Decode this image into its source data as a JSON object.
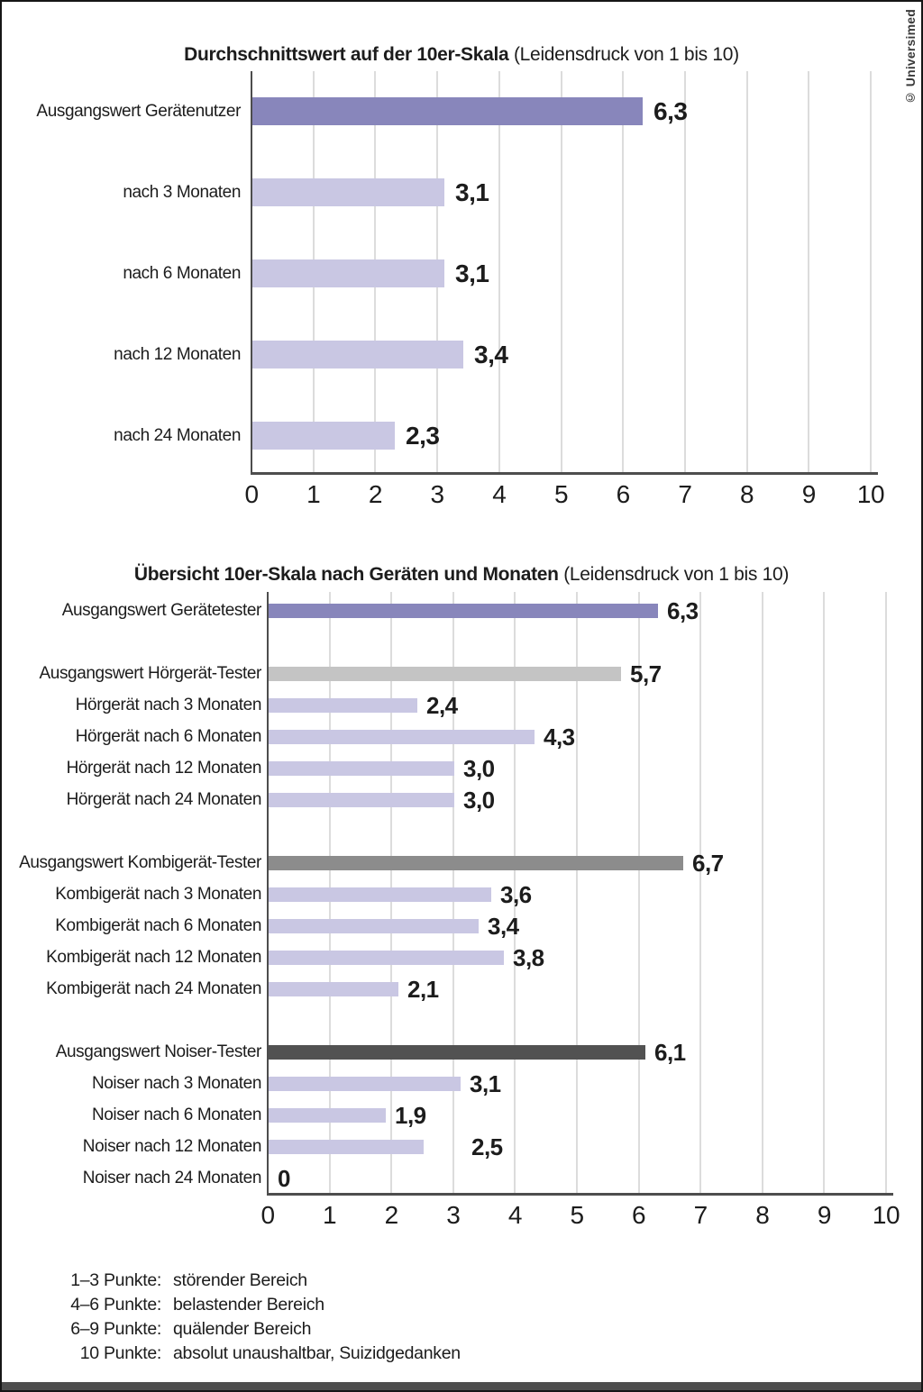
{
  "page": {
    "credit": "© Universimed"
  },
  "palette": {
    "purple_dark": "#8886bb",
    "purple_light": "#c9c7e3",
    "gray_light": "#c4c4c4",
    "gray_mid": "#8c8c8c",
    "gray_dark": "#525252",
    "axis": "#4d4d4d",
    "grid": "#dcdcdc",
    "text": "#1c1c1c"
  },
  "chart_data": [
    {
      "type": "bar",
      "orientation": "horizontal",
      "title_bold": "Durchschnittswert auf der 10er-Skala",
      "title_note": " (Leidensdruck von 1 bis 10)",
      "xlim": [
        0,
        10
      ],
      "ticks": [
        "0",
        "1",
        "2",
        "3",
        "4",
        "5",
        "6",
        "7",
        "8",
        "9",
        "10"
      ],
      "grid": true,
      "legend": "none",
      "groups": [
        {
          "items": [
            {
              "label": "Ausgangswert Gerätenutzer",
              "value": 6.3,
              "display": "6,3",
              "color": "purple_dark"
            },
            {
              "label": "nach 3 Monaten",
              "value": 3.1,
              "display": "3,1",
              "color": "purple_light"
            },
            {
              "label": "nach 6 Monaten",
              "value": 3.1,
              "display": "3,1",
              "color": "purple_light"
            },
            {
              "label": "nach 12 Monaten",
              "value": 3.4,
              "display": "3,4",
              "color": "purple_light"
            },
            {
              "label": "nach 24 Monaten",
              "value": 2.3,
              "display": "2,3",
              "color": "purple_light"
            }
          ]
        }
      ]
    },
    {
      "type": "bar",
      "orientation": "horizontal",
      "title_bold": "Übersicht 10er-Skala nach Geräten und Monaten",
      "title_note": " (Leidensdruck von 1 bis 10)",
      "xlim": [
        0,
        10
      ],
      "ticks": [
        "0",
        "1",
        "2",
        "3",
        "4",
        "5",
        "6",
        "7",
        "8",
        "9",
        "10"
      ],
      "grid": true,
      "legend": "none",
      "groups": [
        {
          "items": [
            {
              "label": "Ausgangswert Gerätetester",
              "value": 6.3,
              "display": "6,3",
              "color": "purple_dark"
            }
          ]
        },
        {
          "items": [
            {
              "label": "Ausgangswert Hörgerät-Tester",
              "value": 5.7,
              "display": "5,7",
              "color": "gray_light"
            },
            {
              "label": "Hörgerät nach 3 Monaten",
              "value": 2.4,
              "display": "2,4",
              "color": "purple_light"
            },
            {
              "label": "Hörgerät nach 6 Monaten",
              "value": 4.3,
              "display": "4,3",
              "color": "purple_light"
            },
            {
              "label": "Hörgerät nach 12 Monaten",
              "value": 3.0,
              "display": "3,0",
              "color": "purple_light"
            },
            {
              "label": "Hörgerät nach 24 Monaten",
              "value": 3.0,
              "display": "3,0",
              "color": "purple_light"
            }
          ]
        },
        {
          "items": [
            {
              "label": "Ausgangswert Kombigerät-Tester",
              "value": 6.7,
              "display": "6,7",
              "color": "gray_mid"
            },
            {
              "label": "Kombigerät nach 3 Monaten",
              "value": 3.6,
              "display": "3,6",
              "color": "purple_light"
            },
            {
              "label": "Kombigerät nach 6 Monaten",
              "value": 3.4,
              "display": "3,4",
              "color": "purple_light"
            },
            {
              "label": "Kombigerät nach 12 Monaten",
              "value": 3.8,
              "display": "3,8",
              "color": "purple_light"
            },
            {
              "label": "Kombigerät nach 24 Monaten",
              "value": 2.1,
              "display": "2,1",
              "color": "purple_light"
            }
          ]
        },
        {
          "items": [
            {
              "label": "Ausgangswert Noiser-Tester",
              "value": 6.1,
              "display": "6,1",
              "color": "gray_dark"
            },
            {
              "label": "Noiser nach 3 Monaten",
              "value": 3.1,
              "display": "3,1",
              "color": "purple_light"
            },
            {
              "label": "Noiser nach 6 Monaten",
              "value": 1.9,
              "display": "1,9",
              "color": "purple_light"
            },
            {
              "label": "Noiser nach 12 Monaten",
              "value": 2.5,
              "display": "2,5",
              "color": "purple_light",
              "label_gap_extra": 43
            },
            {
              "label": "Noiser nach 24 Monaten",
              "value": 0,
              "display": "0",
              "color": "none"
            }
          ]
        }
      ]
    }
  ],
  "footnotes": {
    "items": [
      {
        "range": "1–3 Punkte:",
        "desc": "störender Bereich"
      },
      {
        "range": "4–6 Punkte:",
        "desc": "belastender Bereich"
      },
      {
        "range": "6–9 Punkte:",
        "desc": "quälender Bereich"
      },
      {
        "range": "10 Punkte:",
        "desc": "absolut unaushaltbar, Suizidgedanken"
      }
    ]
  }
}
